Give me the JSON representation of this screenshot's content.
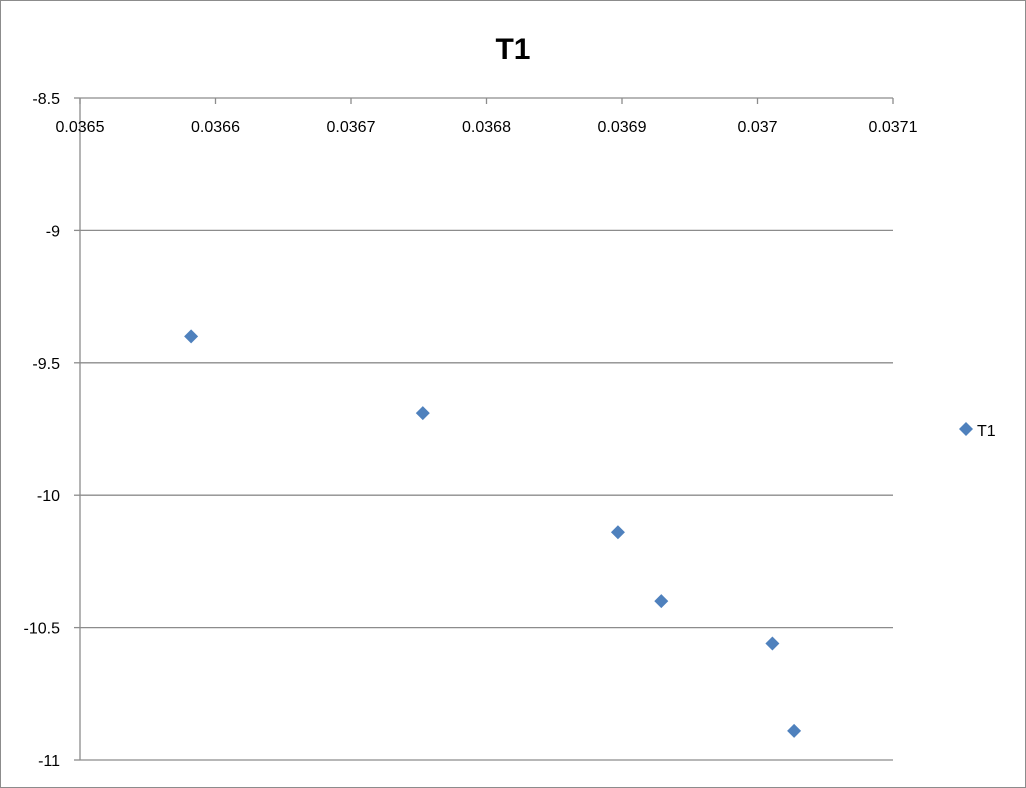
{
  "chart_data": {
    "type": "scatter",
    "title": "T1",
    "xlabel": "",
    "ylabel": "",
    "xlim": [
      0.0365,
      0.0371
    ],
    "ylim": [
      -11,
      -8.5
    ],
    "x_ticks": [
      "0.0365",
      "0.0366",
      "0.0367",
      "0.0368",
      "0.0369",
      "0.037",
      "0.0371"
    ],
    "y_ticks": [
      "-8.5",
      "-9",
      "-9.5",
      "-10",
      "-10.5",
      "-11"
    ],
    "x_axis_position": "top",
    "grid": "horizontal",
    "legend": "right",
    "series": [
      {
        "name": "T1",
        "color": "#4f81bd",
        "marker": "diamond",
        "points": [
          {
            "x": 0.036582,
            "y": -9.4
          },
          {
            "x": 0.036753,
            "y": -9.69
          },
          {
            "x": 0.036897,
            "y": -10.14
          },
          {
            "x": 0.036929,
            "y": -10.4
          },
          {
            "x": 0.037011,
            "y": -10.56
          },
          {
            "x": 0.037027,
            "y": -10.89
          }
        ]
      }
    ]
  }
}
